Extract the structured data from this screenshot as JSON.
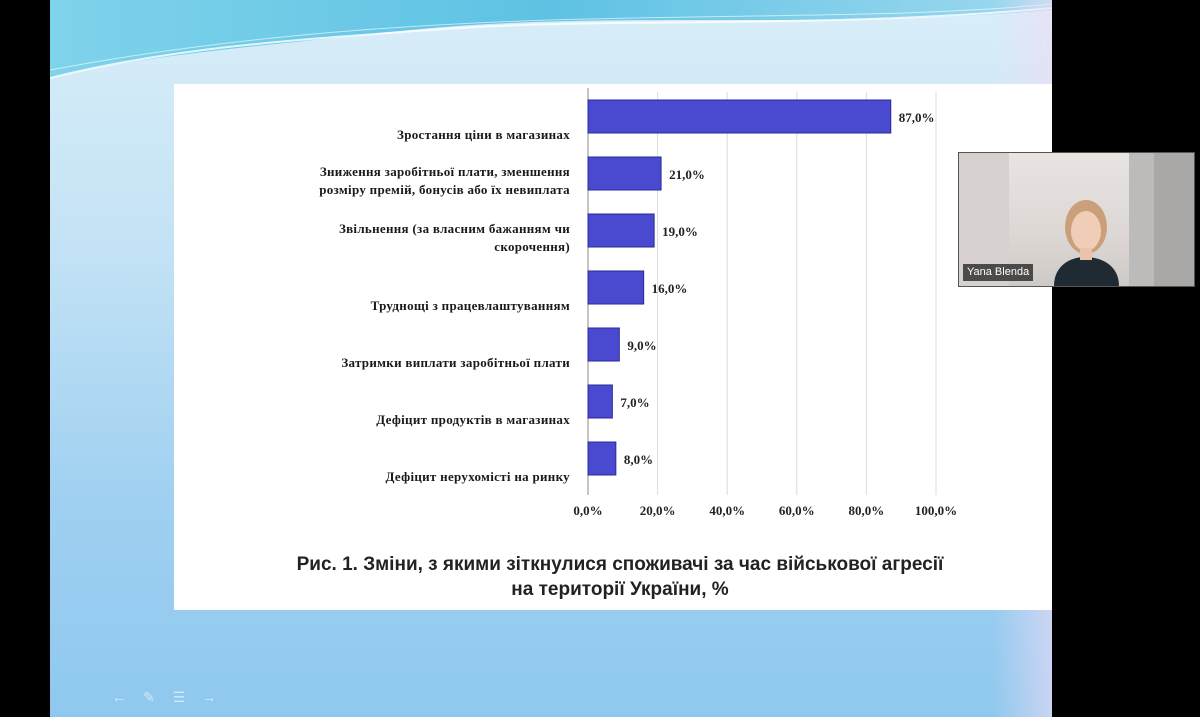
{
  "slide": {
    "caption_line1": "Рис. 1. Зміни, з якими зіткнулися споживачі за час військової агресії",
    "caption_line2": "на території України, %"
  },
  "chart_data": {
    "type": "bar",
    "orientation": "horizontal",
    "categories": [
      [
        "Зростання ціни в магазинах"
      ],
      [
        "Зниження заробітньої плати, зменшення",
        "розміру премій, бонусів або їх невиплата"
      ],
      [
        "Звільнення (за власним бажанням чи",
        "скорочення)"
      ],
      [
        "Труднощі з працевлаштуванням"
      ],
      [
        "Затримки виплати заробітньої плати"
      ],
      [
        "Дефіцит продуктів в магазинах"
      ],
      [
        "Дефіцит нерухомісті на ринку"
      ]
    ],
    "values": [
      87.0,
      21.0,
      19.0,
      16.0,
      9.0,
      7.0,
      8.0
    ],
    "value_labels": [
      "87,0%",
      "21,0%",
      "19,0%",
      "16,0%",
      "9,0%",
      "7,0%",
      "8,0%"
    ],
    "xlim": [
      0,
      100
    ],
    "x_ticks": [
      "0,0%",
      "20,0%",
      "40,0%",
      "60,0%",
      "80,0%",
      "100,0%"
    ],
    "grid": "vertical",
    "bar_color": "#4a4ad0"
  },
  "participant": {
    "name": "Yana Blenda"
  },
  "controls": {
    "icons": [
      "arrow-left-icon",
      "pen-icon",
      "menu-icon",
      "arrow-right-icon"
    ]
  }
}
